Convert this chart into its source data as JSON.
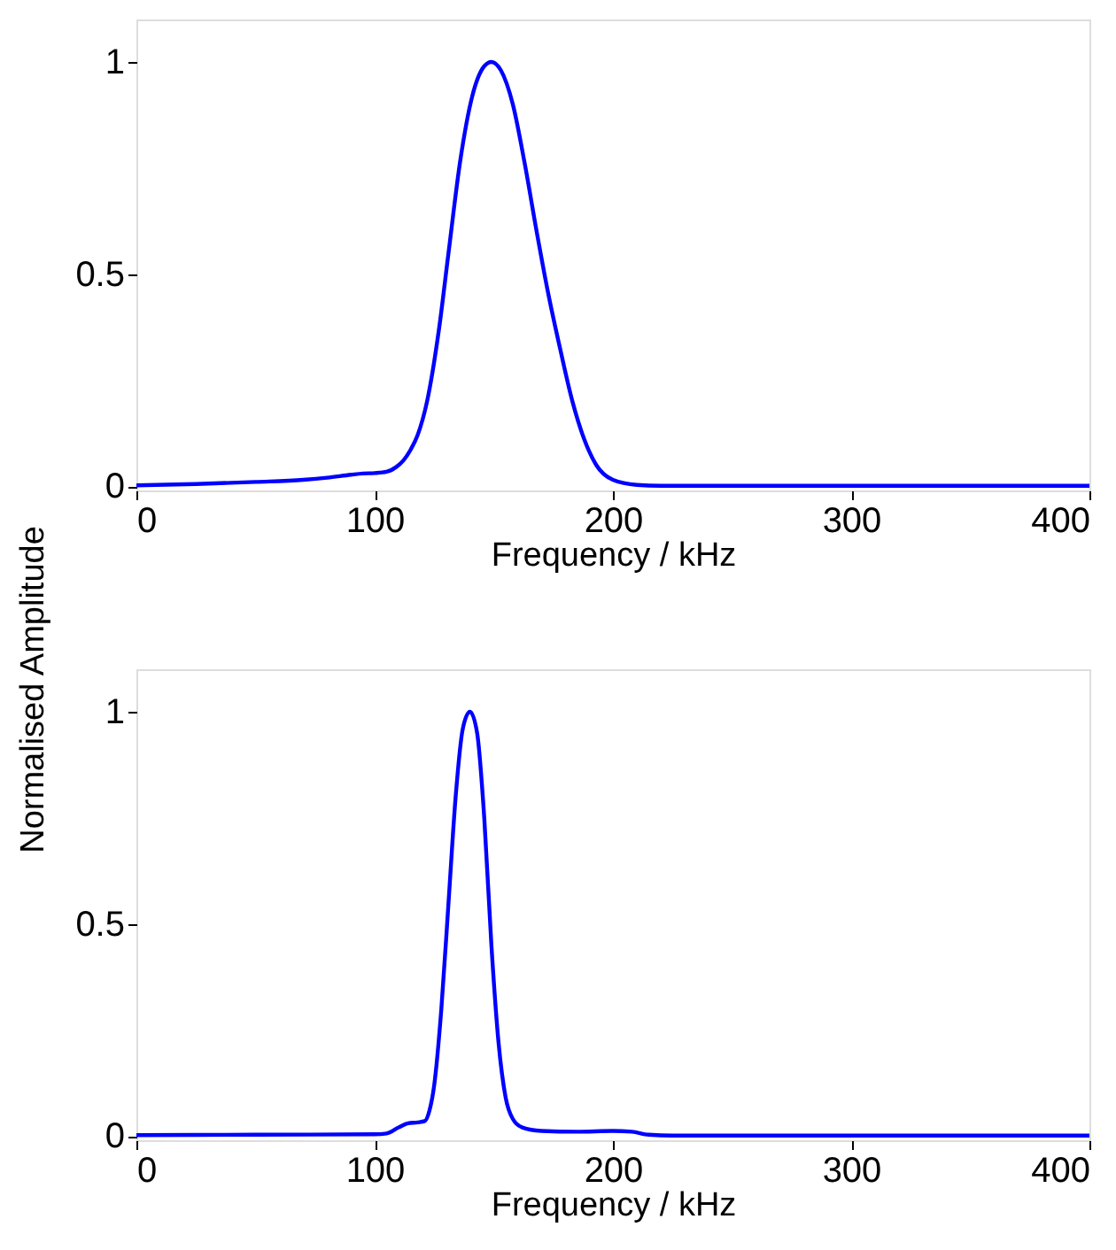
{
  "chart_data": [
    {
      "type": "line",
      "xlabel": "Frequency / kHz",
      "ylabel": "Normalised Amplitude",
      "xlim": [
        0,
        400
      ],
      "xticks": [
        0,
        100,
        200,
        300,
        400
      ],
      "ylim": [
        -0.01,
        1.1
      ],
      "yticks": [
        0,
        0.5,
        1
      ],
      "grid": false,
      "series": [
        {
          "color": "#0000ff",
          "x": [
            0,
            25,
            50,
            70,
            80,
            90,
            95,
            100,
            105,
            109,
            112,
            115,
            118,
            122,
            127,
            131,
            136,
            141,
            146,
            149,
            153,
            158,
            163,
            168,
            173,
            178,
            183,
            188,
            193,
            200,
            210,
            220,
            250,
            300,
            350,
            400
          ],
          "values": [
            0.002,
            0.005,
            0.01,
            0.015,
            0.02,
            0.027,
            0.03,
            0.031,
            0.034,
            0.045,
            0.06,
            0.085,
            0.12,
            0.2,
            0.37,
            0.55,
            0.77,
            0.92,
            0.99,
            1,
            0.98,
            0.9,
            0.76,
            0.6,
            0.45,
            0.32,
            0.2,
            0.11,
            0.05,
            0.015,
            0.003,
            0.001,
            0.001,
            0.001,
            0.001,
            0.001
          ]
        }
      ]
    },
    {
      "type": "line",
      "xlabel": "Frequency / kHz",
      "xlim": [
        0,
        400
      ],
      "xticks": [
        0,
        100,
        200,
        300,
        400
      ],
      "ylim": [
        -0.01,
        1.1
      ],
      "yticks": [
        0,
        0.5,
        1
      ],
      "grid": false,
      "series": [
        {
          "color": "#0000ff",
          "x": [
            0,
            50,
            100,
            105,
            110,
            114,
            118,
            121,
            123,
            125,
            128,
            131,
            134,
            137,
            140,
            143,
            146,
            149,
            152,
            155,
            158,
            162,
            170,
            185,
            200,
            208,
            215,
            225,
            300,
            400
          ],
          "values": [
            0.002,
            0.003,
            0.004,
            0.006,
            0.02,
            0.03,
            0.032,
            0.035,
            0.06,
            0.12,
            0.3,
            0.55,
            0.8,
            0.96,
            1,
            0.95,
            0.75,
            0.45,
            0.22,
            0.09,
            0.04,
            0.02,
            0.012,
            0.01,
            0.012,
            0.01,
            0.003,
            0.001,
            0.001,
            0.001
          ]
        }
      ]
    }
  ]
}
